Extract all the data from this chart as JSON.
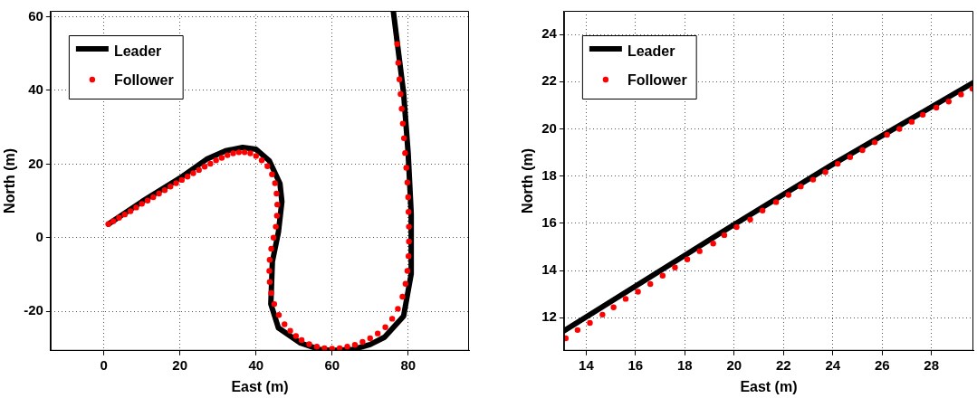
{
  "chart_data": [
    {
      "type": "line",
      "xlabel": "East (m)",
      "ylabel": "North (m)",
      "xlim": [
        -14,
        96
      ],
      "ylim": [
        -30.7,
        61.6
      ],
      "xticks": [
        0,
        20,
        40,
        60,
        80
      ],
      "yticks": [
        -20,
        0,
        20,
        40,
        60
      ],
      "grid": true,
      "legend": "top left",
      "series": [
        {
          "name": "Leader",
          "type": "line",
          "color": "#000000",
          "line_style": "solid",
          "marker": "none",
          "x": [
            1.2,
            10,
            20,
            27,
            32,
            36.5,
            40,
            43.5,
            46.3,
            46.8,
            45.9,
            44.3,
            43.9,
            45.9,
            51.7,
            56.6,
            60,
            65.6,
            70,
            73.8,
            78.8,
            80.8,
            80.8,
            80,
            78.8,
            77.1,
            76.1
          ],
          "values": [
            3.7,
            9.8,
            16.2,
            21.3,
            23.6,
            24.5,
            24,
            20.9,
            14.7,
            9.8,
            1.6,
            -6.5,
            -18,
            -24.5,
            -28.6,
            -30.3,
            -30.6,
            -30.3,
            -29,
            -27,
            -21.3,
            -9.8,
            6.5,
            22.9,
            39.3,
            53.2,
            61.5
          ]
        },
        {
          "name": "Follower",
          "type": "scatter",
          "color": "#ff0000",
          "marker": "circle",
          "x": [
            1.2,
            2.5,
            4,
            5.5,
            7,
            8.5,
            10,
            11.5,
            13,
            14.5,
            16,
            17.5,
            19,
            20.5,
            22,
            23.5,
            25,
            26.5,
            28,
            29.5,
            31,
            32.5,
            34,
            35.5,
            37,
            38.5,
            40,
            41.5,
            43,
            44.2,
            45,
            45.4,
            45.6,
            45.5,
            45.2,
            44.6,
            44,
            43.6,
            43.5,
            43.6,
            44,
            44.8,
            46,
            47.5,
            49,
            50.5,
            52,
            54,
            56,
            58,
            60,
            62,
            64,
            66,
            68,
            70,
            72,
            74,
            75.8,
            77.3,
            78.5,
            79.3,
            79.8,
            80.1,
            80.2,
            80.2,
            80.1,
            80,
            79.8,
            79.5,
            79.2,
            78.9,
            78.6,
            78.3,
            78,
            77.7,
            77.4,
            77.1
          ],
          "values": [
            3.7,
            4.5,
            5.4,
            6.3,
            7.2,
            8.2,
            9.2,
            10.1,
            11,
            12,
            12.9,
            13.9,
            14.8,
            15.7,
            16.6,
            17.5,
            18.4,
            19.3,
            20.1,
            21,
            21.7,
            22.4,
            22.9,
            23.2,
            23.2,
            22.9,
            22.2,
            21,
            19.4,
            17.2,
            14.8,
            12,
            9,
            6,
            3,
            0,
            -3,
            -6,
            -9,
            -12,
            -15,
            -18,
            -21,
            -23.5,
            -25.3,
            -26.7,
            -27.8,
            -28.9,
            -29.6,
            -30,
            -30.1,
            -30,
            -29.6,
            -29.1,
            -28.3,
            -27.3,
            -26,
            -24.3,
            -22,
            -19.3,
            -16,
            -12.5,
            -9,
            -5,
            -1,
            3,
            7,
            11,
            15,
            19,
            23,
            27,
            31,
            35,
            39,
            43,
            47.5,
            52.6
          ]
        }
      ]
    },
    {
      "type": "line",
      "xlabel": "East (m)",
      "ylabel": "North (m)",
      "xlim": [
        13.1,
        29.7
      ],
      "ylim": [
        10.6,
        25
      ],
      "xticks": [
        14,
        16,
        18,
        20,
        22,
        24,
        26,
        28
      ],
      "yticks": [
        12,
        14,
        16,
        18,
        20,
        22,
        24
      ],
      "grid": true,
      "legend": "top left",
      "series": [
        {
          "name": "Leader",
          "type": "line",
          "color": "#000000",
          "line_style": "solid",
          "marker": "none",
          "x": [
            13.1,
            20,
            24,
            29.7
          ],
          "values": [
            11.45,
            15.95,
            18.5,
            21.96
          ]
        },
        {
          "name": "Follower",
          "type": "scatter",
          "color": "#ff0000",
          "marker": "circle",
          "x": [
            13.17,
            13.65,
            14.15,
            14.66,
            15.11,
            15.6,
            16.1,
            16.6,
            17.1,
            17.6,
            18.1,
            18.6,
            19.15,
            19.6,
            20.1,
            20.65,
            21.15,
            21.7,
            22.2,
            22.7,
            23.2,
            23.7,
            24.2,
            24.7,
            25.2,
            25.7,
            26.2,
            26.7,
            27.2,
            27.65,
            28.2,
            28.7,
            29.2,
            29.66
          ],
          "values": [
            11.13,
            11.48,
            11.78,
            12.13,
            12.44,
            12.8,
            13.1,
            13.43,
            13.78,
            14.13,
            14.47,
            14.82,
            15.14,
            15.5,
            15.84,
            16.16,
            16.54,
            16.9,
            17.2,
            17.56,
            17.85,
            18.17,
            18.52,
            18.8,
            19.1,
            19.43,
            19.75,
            20,
            20.3,
            20.6,
            20.9,
            21.16,
            21.46,
            21.7
          ]
        }
      ]
    }
  ]
}
